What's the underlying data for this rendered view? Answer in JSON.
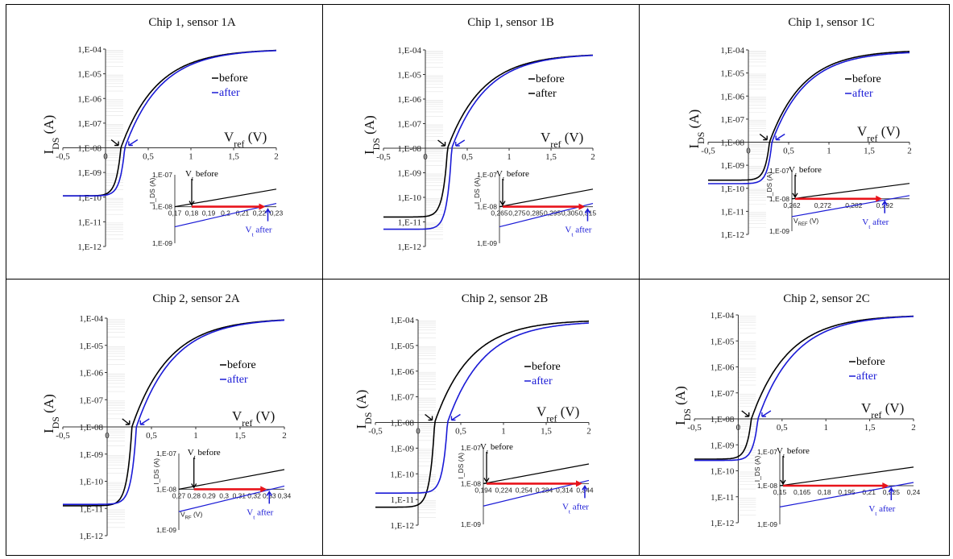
{
  "figure": {
    "y_axis_label_main": "I",
    "y_axis_label_sub": "DS",
    "y_axis_label_unit": " (A)",
    "x_axis_label_main": "V",
    "x_axis_label_sub": "ref",
    "x_axis_label_unit": " (V)",
    "x_ticks": [
      "-0,5",
      "0",
      "0,5",
      "1",
      "1,5",
      "2"
    ],
    "legend_before": "before",
    "legend_after": "after",
    "vt_before_label": "V",
    "vt_before_rest": " before",
    "vt_after_label": "V",
    "vt_after_rest": " after",
    "inset_ylabel": "I_DS (A)",
    "inset_xlabel": "V_RF (V)",
    "inset_xlabel_c": "V_REF (V)",
    "colors": {
      "before": "#000000",
      "after": "#1a1ad6",
      "shift_arrow": "#e8141b"
    }
  },
  "chart_data": [
    {
      "type": "line",
      "title": "Chip 1, sensor 1A",
      "xlim": [
        -0.5,
        2
      ],
      "ylim_log10": [
        -12,
        -4
      ],
      "y_ticks": [
        "1,E-04",
        "1,E-05",
        "1,E-06",
        "1,E-07",
        "1,E-08",
        "1,E-09",
        "1,E-10",
        "1,E-11",
        "1,E-12"
      ],
      "series": [
        {
          "name": "before",
          "vt": 0.18,
          "floor_log10": -9.95,
          "sat_log10": -4.0
        },
        {
          "name": "after",
          "vt": 0.225,
          "floor_log10": -9.95,
          "sat_log10": -4.0
        }
      ],
      "inset": {
        "x_ticks": [
          "0,17",
          "0,18",
          "0,19",
          "0,2",
          "0,21",
          "0,22",
          "0,23"
        ],
        "xlim": [
          0.17,
          0.23
        ],
        "y_ticks": [
          "1,E-07",
          "1,E-08",
          "1,E-09"
        ]
      }
    },
    {
      "type": "line",
      "title": "Chip 1, sensor 1B",
      "xlim": [
        -0.5,
        2
      ],
      "ylim_log10": [
        -12,
        -4
      ],
      "y_ticks": [
        "1,E-04",
        "1,E-05",
        "1,E-06",
        "1,E-07",
        "1,E-08",
        "1,E-09",
        "1,E-10",
        "1,E-11",
        "1,E-12"
      ],
      "series": [
        {
          "name": "before",
          "vt": 0.265,
          "floor_log10": -10.8,
          "sat_log10": -4.15
        },
        {
          "name": "after",
          "vt": 0.315,
          "floor_log10": -11.3,
          "sat_log10": -4.15
        }
      ],
      "inset": {
        "x_ticks": [
          "0,265",
          "0,275",
          "0,285",
          "0,295",
          "0,305",
          "0,315"
        ],
        "xlim": [
          0.265,
          0.318
        ],
        "y_ticks": [
          "1,E-07",
          "1,E-08",
          "1,E-09"
        ]
      }
    },
    {
      "type": "line",
      "title": "Chip 1, sensor 1C",
      "xlim": [
        -0.5,
        2
      ],
      "ylim_log10": [
        -12,
        -4
      ],
      "y_ticks": [
        "1,E-04",
        "1,E-05",
        "1,E-06",
        "1,E-07",
        "1,E-08",
        "1,E-09",
        "1,E-10",
        "1,E-11",
        "1,E-12"
      ],
      "series": [
        {
          "name": "before",
          "vt": 0.262,
          "floor_log10": -9.65,
          "sat_log10": -4.0
        },
        {
          "name": "after",
          "vt": 0.292,
          "floor_log10": -9.8,
          "sat_log10": -4.05
        }
      ],
      "inset": {
        "x_ticks": [
          "0,262",
          "0,272",
          "0,282",
          "0,292"
        ],
        "xlim": [
          0.262,
          0.3
        ],
        "y_ticks": [
          "1,E-07",
          "1,E-08",
          "1,E-09"
        ]
      }
    },
    {
      "type": "line",
      "title": "Chip 2, sensor 2A",
      "xlim": [
        -0.5,
        2
      ],
      "ylim_log10": [
        -12,
        -4
      ],
      "y_ticks": [
        "1,E-04",
        "1,E-05",
        "1,E-06",
        "1,E-07",
        "1,E-08",
        "1,E-09",
        "1,E-10",
        "1,E-11",
        "1,E-12"
      ],
      "series": [
        {
          "name": "before",
          "vt": 0.28,
          "floor_log10": -10.9,
          "sat_log10": -4.0
        },
        {
          "name": "after",
          "vt": 0.33,
          "floor_log10": -10.85,
          "sat_log10": -4.0
        }
      ],
      "inset": {
        "x_ticks": [
          "0,27",
          "0,28",
          "0,29",
          "0,3",
          "0,31",
          "0,32",
          "0,33",
          "0,34"
        ],
        "xlim": [
          0.27,
          0.34
        ],
        "y_ticks": [
          "1,E-07",
          "1,E-08",
          "1,E-09"
        ]
      }
    },
    {
      "type": "line",
      "title": "Chip 2, sensor 2B",
      "xlim": [
        -0.5,
        2
      ],
      "ylim_log10": [
        -12,
        -4
      ],
      "y_ticks": [
        "1,E-04",
        "1,E-05",
        "1,E-06",
        "1,E-07",
        "1,E-08",
        "1,E-09",
        "1,E-10",
        "1,E-11",
        "1,E-12"
      ],
      "series": [
        {
          "name": "before",
          "vt": 0.194,
          "floor_log10": -11.3,
          "sat_log10": -4.0
        },
        {
          "name": "after",
          "vt": 0.344,
          "floor_log10": -10.75,
          "sat_log10": -4.05
        }
      ],
      "inset": {
        "x_ticks": [
          "0,194",
          "0,224",
          "0,254",
          "0,284",
          "0,314",
          "0,344"
        ],
        "xlim": [
          0.194,
          0.35
        ],
        "y_ticks": [
          "1,E-07",
          "1,E-08",
          "1,E-09"
        ]
      }
    },
    {
      "type": "line",
      "title": "Chip 2, sensor 2C",
      "xlim": [
        -0.5,
        2
      ],
      "ylim_log10": [
        -12,
        -4
      ],
      "y_ticks": [
        "1,E-04",
        "1,E-05",
        "1,E-06",
        "1,E-07",
        "1,E-08",
        "1,E-09",
        "1,E-10",
        "1,E-11",
        "1,E-12"
      ],
      "series": [
        {
          "name": "before",
          "vt": 0.15,
          "floor_log10": -9.55,
          "sat_log10": -4.0
        },
        {
          "name": "after",
          "vt": 0.225,
          "floor_log10": -9.6,
          "sat_log10": -4.0
        }
      ],
      "inset": {
        "x_ticks": [
          "0,15",
          "0,165",
          "0,18",
          "0,195",
          "0,21",
          "0,225",
          "0,24"
        ],
        "xlim": [
          0.15,
          0.24
        ],
        "y_ticks": [
          "1,E-07",
          "1,E-08",
          "1,E-09"
        ]
      }
    }
  ]
}
